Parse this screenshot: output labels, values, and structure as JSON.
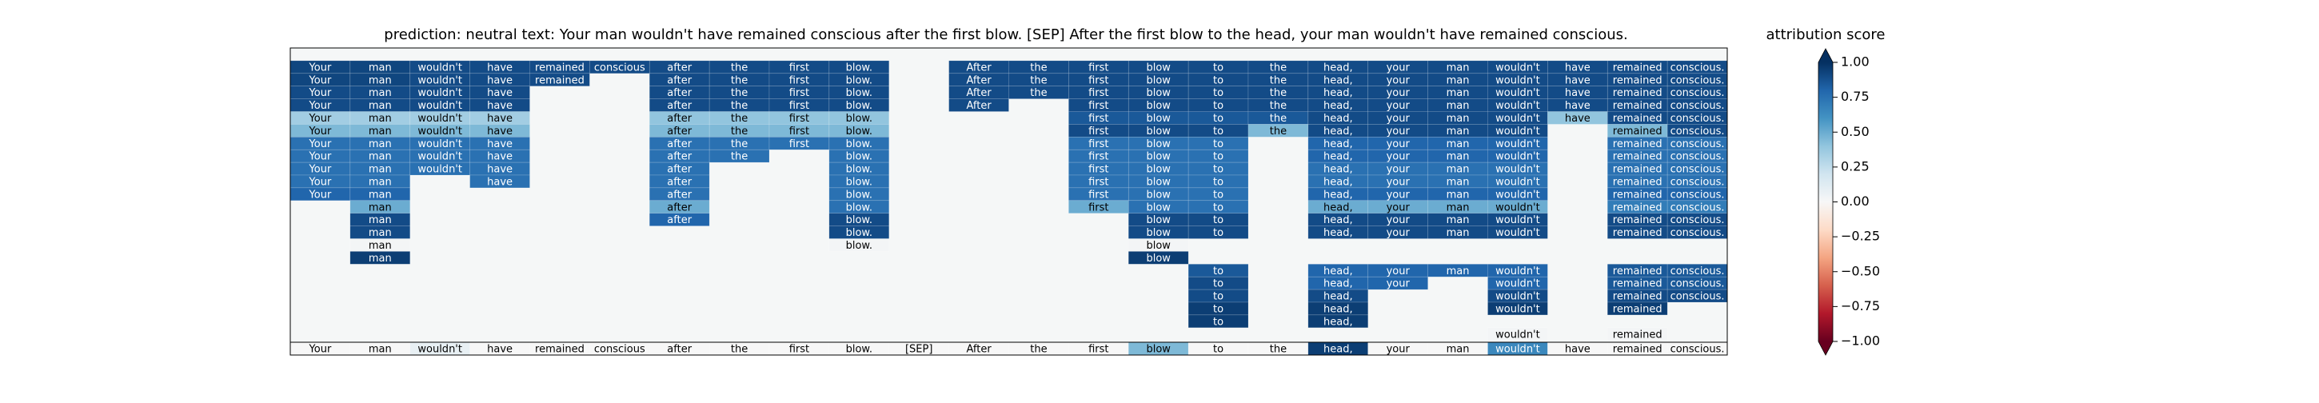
{
  "chart_data": {
    "type": "heatmap",
    "title": "prediction:  neutral     text:  Your man wouldn't have remained conscious after the first blow. [SEP] After the first blow to the head, your man wouldn't have remained conscious.",
    "colorbar_title": "attribution score",
    "colormap": "RdBu",
    "clim": [
      -1,
      1
    ],
    "cticks": [
      {
        "value": 1,
        "label": "1.00"
      },
      {
        "value": 0.75,
        "label": "0.75"
      },
      {
        "value": 0.5,
        "label": "0.50"
      },
      {
        "value": 0.25,
        "label": "0.25"
      },
      {
        "value": 0,
        "label": "0.00"
      },
      {
        "value": -0.25,
        "label": "−0.25"
      },
      {
        "value": -0.5,
        "label": "−0.50"
      },
      {
        "value": -0.75,
        "label": "−0.75"
      },
      {
        "value": -1,
        "label": "−1.00"
      }
    ],
    "tokens": [
      "Your",
      "man",
      "wouldn't",
      "have",
      "remained",
      "conscious",
      "after",
      "the",
      "first",
      "blow.",
      "[SEP]",
      "After",
      "the",
      "first",
      "blow",
      "to",
      "the",
      "head,",
      "your",
      "man",
      "wouldn't",
      "have",
      "remained",
      "conscious."
    ],
    "rows": [
      [
        0.92,
        0.92,
        0.9,
        0.9,
        0.9,
        0.9,
        0.9,
        0.9,
        0.9,
        0.9,
        null,
        0.9,
        0.9,
        0.9,
        0.9,
        0.9,
        0.9,
        0.9,
        0.9,
        0.9,
        0.9,
        0.9,
        0.9,
        0.9
      ],
      [
        0.92,
        0.92,
        0.9,
        0.9,
        0.9,
        null,
        0.9,
        0.9,
        0.9,
        0.9,
        null,
        0.9,
        0.9,
        0.9,
        0.9,
        0.9,
        0.9,
        0.9,
        0.9,
        0.9,
        0.9,
        0.9,
        0.9,
        0.9
      ],
      [
        0.9,
        0.9,
        0.9,
        0.9,
        null,
        null,
        0.9,
        0.9,
        0.9,
        0.9,
        null,
        0.9,
        0.9,
        0.9,
        0.9,
        0.9,
        0.9,
        0.9,
        0.9,
        0.9,
        0.9,
        0.9,
        0.9,
        0.9
      ],
      [
        0.9,
        0.9,
        0.9,
        0.9,
        null,
        null,
        0.9,
        0.9,
        0.9,
        0.9,
        null,
        0.9,
        null,
        0.9,
        0.9,
        0.9,
        0.9,
        0.9,
        0.9,
        0.9,
        0.9,
        0.9,
        0.9,
        0.9
      ],
      [
        0.35,
        0.35,
        0.35,
        0.35,
        null,
        null,
        0.4,
        0.4,
        0.4,
        0.4,
        null,
        null,
        null,
        0.85,
        0.85,
        0.85,
        0.85,
        0.9,
        0.9,
        0.9,
        0.9,
        0.4,
        0.9,
        0.9
      ],
      [
        0.45,
        0.45,
        0.45,
        0.45,
        null,
        null,
        0.45,
        0.45,
        0.45,
        0.45,
        null,
        null,
        null,
        0.9,
        0.9,
        0.9,
        0.45,
        0.9,
        0.9,
        0.9,
        0.9,
        null,
        0.45,
        0.9
      ],
      [
        0.75,
        0.75,
        0.75,
        0.75,
        null,
        null,
        0.75,
        0.75,
        0.75,
        0.75,
        null,
        null,
        null,
        0.75,
        0.75,
        0.75,
        null,
        0.8,
        0.8,
        0.8,
        0.8,
        null,
        0.75,
        0.75
      ],
      [
        0.75,
        0.75,
        0.75,
        0.75,
        null,
        null,
        0.75,
        0.75,
        null,
        0.75,
        null,
        null,
        null,
        0.75,
        0.75,
        0.75,
        null,
        0.8,
        0.8,
        0.8,
        0.8,
        null,
        0.75,
        0.75
      ],
      [
        0.75,
        0.75,
        0.75,
        0.75,
        null,
        null,
        0.75,
        null,
        null,
        0.75,
        null,
        null,
        null,
        0.75,
        0.75,
        0.75,
        null,
        0.75,
        0.75,
        0.75,
        0.75,
        null,
        0.75,
        0.75
      ],
      [
        0.75,
        0.75,
        null,
        0.75,
        null,
        null,
        0.75,
        null,
        null,
        0.75,
        null,
        null,
        null,
        0.75,
        0.75,
        0.75,
        null,
        0.75,
        0.75,
        0.75,
        0.75,
        null,
        0.75,
        0.75
      ],
      [
        0.8,
        0.8,
        null,
        null,
        null,
        null,
        0.75,
        null,
        null,
        0.75,
        null,
        null,
        null,
        0.75,
        0.75,
        0.75,
        null,
        0.8,
        0.8,
        0.8,
        0.8,
        null,
        0.8,
        0.8
      ],
      [
        null,
        0.5,
        null,
        null,
        null,
        null,
        0.5,
        null,
        null,
        0.75,
        null,
        null,
        null,
        0.5,
        0.75,
        0.75,
        null,
        0.5,
        0.5,
        0.5,
        0.5,
        null,
        0.7,
        0.7
      ],
      [
        null,
        0.9,
        null,
        null,
        null,
        null,
        0.8,
        null,
        null,
        0.9,
        null,
        null,
        null,
        null,
        0.9,
        0.9,
        null,
        0.9,
        0.9,
        0.9,
        0.9,
        null,
        0.9,
        0.9
      ],
      [
        null,
        0.9,
        null,
        null,
        null,
        null,
        null,
        null,
        null,
        0.9,
        null,
        null,
        null,
        null,
        0.9,
        0.9,
        null,
        0.9,
        0.9,
        0.9,
        0.9,
        null,
        0.9,
        0.9
      ],
      [
        null,
        0.02,
        null,
        null,
        null,
        null,
        null,
        null,
        null,
        0.02,
        null,
        null,
        null,
        null,
        0.02,
        null,
        null,
        null,
        null,
        null,
        null,
        null,
        null,
        null
      ],
      [
        null,
        0.95,
        null,
        null,
        null,
        null,
        null,
        null,
        null,
        null,
        null,
        null,
        null,
        null,
        0.95,
        null,
        null,
        null,
        null,
        null,
        null,
        null,
        null,
        null
      ],
      [
        null,
        null,
        null,
        null,
        null,
        null,
        null,
        null,
        null,
        null,
        null,
        null,
        null,
        null,
        null,
        0.85,
        null,
        0.8,
        0.8,
        0.8,
        0.8,
        null,
        0.85,
        0.85
      ],
      [
        null,
        null,
        null,
        null,
        null,
        null,
        null,
        null,
        null,
        null,
        null,
        null,
        null,
        null,
        null,
        0.9,
        null,
        0.8,
        0.8,
        null,
        0.8,
        null,
        0.85,
        0.85
      ],
      [
        null,
        null,
        null,
        null,
        null,
        null,
        null,
        null,
        null,
        null,
        null,
        null,
        null,
        null,
        null,
        0.9,
        null,
        0.9,
        null,
        null,
        0.9,
        null,
        0.9,
        0.9
      ],
      [
        null,
        null,
        null,
        null,
        null,
        null,
        null,
        null,
        null,
        null,
        null,
        null,
        null,
        null,
        null,
        0.95,
        null,
        0.95,
        null,
        null,
        0.95,
        null,
        0.95,
        null
      ],
      [
        null,
        null,
        null,
        null,
        null,
        null,
        null,
        null,
        null,
        null,
        null,
        null,
        null,
        null,
        null,
        0.95,
        null,
        0.95,
        null,
        null,
        null,
        null,
        null,
        null
      ],
      [
        null,
        null,
        null,
        null,
        null,
        null,
        null,
        null,
        null,
        null,
        null,
        null,
        null,
        null,
        null,
        null,
        null,
        null,
        null,
        null,
        0.02,
        null,
        0.02,
        null
      ]
    ],
    "summary_row": [
      0,
      0,
      0.08,
      0,
      0,
      0,
      0,
      0,
      0,
      0,
      0,
      0,
      0,
      0,
      0.45,
      0,
      0,
      0.95,
      0,
      0,
      0.65,
      0,
      0,
      0
    ]
  }
}
